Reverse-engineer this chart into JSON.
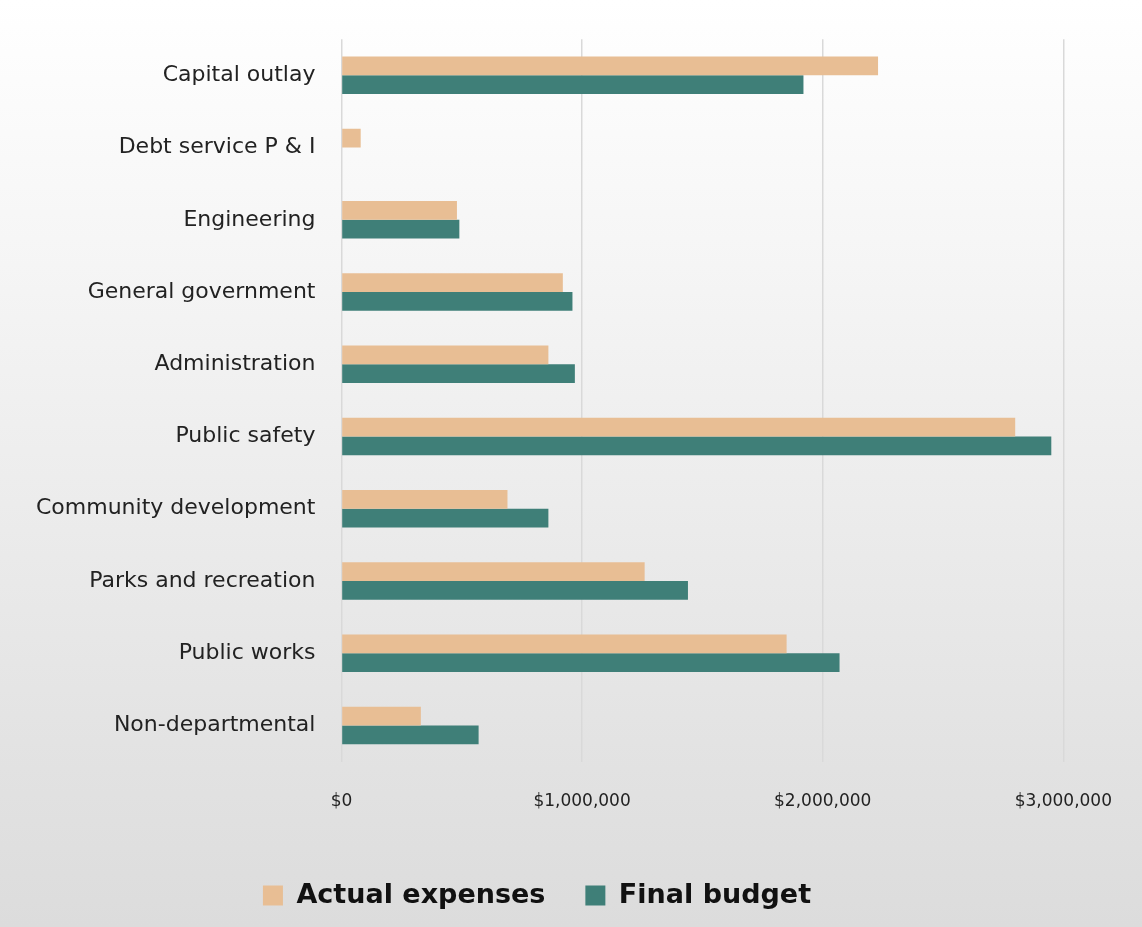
{
  "chart_data": {
    "type": "bar",
    "orientation": "horizontal",
    "categories": [
      "Capital outlay",
      "Debt service P & I",
      "Engineering",
      "General government",
      "Administration",
      "Public safety",
      "Community development",
      "Parks and recreation",
      "Public works",
      "Non-departmental"
    ],
    "series": [
      {
        "name": "Actual expenses",
        "color": "#e8be94",
        "values": [
          2230000,
          80000,
          480000,
          920000,
          860000,
          2800000,
          690000,
          1260000,
          1850000,
          330000
        ]
      },
      {
        "name": "Final budget",
        "color": "#3f7f78",
        "values": [
          1920000,
          null,
          490000,
          960000,
          970000,
          2950000,
          860000,
          1440000,
          2070000,
          570000
        ]
      }
    ],
    "xlim": [
      0,
      3000000
    ],
    "xticks": [
      {
        "value": 0,
        "label": "$0"
      },
      {
        "value": 1000000,
        "label": "$1,000,000"
      },
      {
        "value": 2000000,
        "label": "$2,000,000"
      },
      {
        "value": 3000000,
        "label": "$3,000,000"
      }
    ],
    "grid": "x",
    "legend": "bottom"
  }
}
